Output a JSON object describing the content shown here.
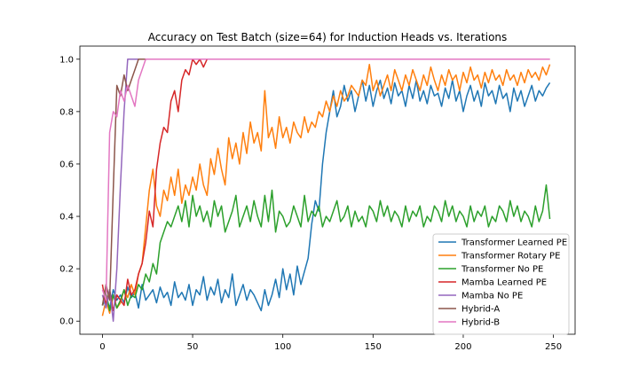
{
  "chart_data": {
    "type": "line",
    "title": "Accuracy on Test Batch (size=64) for Induction Heads vs. Iterations",
    "xlabel": "",
    "ylabel": "",
    "xlim": [
      -12.5,
      262
    ],
    "ylim": [
      -0.05,
      1.05
    ],
    "x_ticks": [
      0,
      50,
      100,
      150,
      200,
      250
    ],
    "x_tick_labels": [
      "0",
      "50",
      "100",
      "150",
      "200",
      "250"
    ],
    "y_ticks": [
      0.0,
      0.2,
      0.4,
      0.6,
      0.8,
      1.0
    ],
    "y_tick_labels": [
      "0.0",
      "0.2",
      "0.4",
      "0.6",
      "0.8",
      "1.0"
    ],
    "grid": false,
    "legend_position": "lower-right",
    "x_start": 0,
    "x_step": 2,
    "series": [
      {
        "name": "Transformer Learned PE",
        "color": "#1f77b4",
        "values": [
          0.06,
          0.09,
          0.05,
          0.12,
          0.08,
          0.1,
          0.07,
          0.13,
          0.09,
          0.11,
          0.05,
          0.14,
          0.08,
          0.1,
          0.12,
          0.07,
          0.13,
          0.09,
          0.11,
          0.06,
          0.15,
          0.09,
          0.11,
          0.08,
          0.14,
          0.06,
          0.12,
          0.1,
          0.17,
          0.08,
          0.13,
          0.1,
          0.16,
          0.07,
          0.12,
          0.09,
          0.18,
          0.06,
          0.1,
          0.14,
          0.08,
          0.12,
          0.1,
          0.07,
          0.04,
          0.12,
          0.06,
          0.1,
          0.16,
          0.09,
          0.2,
          0.12,
          0.18,
          0.1,
          0.21,
          0.14,
          0.19,
          0.24,
          0.37,
          0.46,
          0.42,
          0.6,
          0.72,
          0.8,
          0.88,
          0.78,
          0.82,
          0.9,
          0.84,
          0.88,
          0.8,
          0.86,
          0.92,
          0.84,
          0.9,
          0.82,
          0.88,
          0.92,
          0.85,
          0.89,
          0.83,
          0.91,
          0.86,
          0.88,
          0.82,
          0.9,
          0.85,
          0.92,
          0.84,
          0.88,
          0.83,
          0.9,
          0.86,
          0.87,
          0.82,
          0.89,
          0.85,
          0.92,
          0.84,
          0.88,
          0.8,
          0.86,
          0.9,
          0.84,
          0.88,
          0.82,
          0.91,
          0.86,
          0.88,
          0.83,
          0.9,
          0.85,
          0.87,
          0.8,
          0.89,
          0.84,
          0.88,
          0.82,
          0.86,
          0.9,
          0.84,
          0.88,
          0.86,
          0.89,
          0.91
        ]
      },
      {
        "name": "Transformer Rotary PE",
        "color": "#ff7f0e",
        "values": [
          0.02,
          0.08,
          0.03,
          0.1,
          0.05,
          0.07,
          0.12,
          0.09,
          0.14,
          0.1,
          0.18,
          0.22,
          0.36,
          0.5,
          0.58,
          0.44,
          0.4,
          0.5,
          0.46,
          0.55,
          0.48,
          0.58,
          0.45,
          0.52,
          0.48,
          0.55,
          0.5,
          0.6,
          0.52,
          0.48,
          0.62,
          0.56,
          0.66,
          0.58,
          0.52,
          0.7,
          0.62,
          0.68,
          0.6,
          0.72,
          0.64,
          0.76,
          0.68,
          0.72,
          0.65,
          0.88,
          0.7,
          0.74,
          0.66,
          0.78,
          0.7,
          0.74,
          0.68,
          0.76,
          0.72,
          0.7,
          0.78,
          0.72,
          0.76,
          0.74,
          0.8,
          0.78,
          0.84,
          0.8,
          0.86,
          0.82,
          0.88,
          0.84,
          0.86,
          0.9,
          0.88,
          0.86,
          0.92,
          0.9,
          0.98,
          0.88,
          0.92,
          0.86,
          0.9,
          0.94,
          0.88,
          0.96,
          0.92,
          0.88,
          0.94,
          0.9,
          0.96,
          0.92,
          0.88,
          0.94,
          0.9,
          0.97,
          0.92,
          0.88,
          0.94,
          0.9,
          0.96,
          0.92,
          0.94,
          0.88,
          0.95,
          0.91,
          0.97,
          0.92,
          0.94,
          0.89,
          0.95,
          0.91,
          0.96,
          0.92,
          0.94,
          0.9,
          0.96,
          0.92,
          0.94,
          0.9,
          0.95,
          0.91,
          0.96,
          0.93,
          0.95,
          0.92,
          0.97,
          0.94,
          0.98
        ]
      },
      {
        "name": "Transformer No PE",
        "color": "#2ca02c",
        "values": [
          0.06,
          0.11,
          0.04,
          0.1,
          0.05,
          0.08,
          0.12,
          0.06,
          0.1,
          0.09,
          0.14,
          0.12,
          0.18,
          0.15,
          0.22,
          0.18,
          0.3,
          0.34,
          0.38,
          0.36,
          0.4,
          0.44,
          0.38,
          0.46,
          0.36,
          0.48,
          0.4,
          0.44,
          0.38,
          0.42,
          0.36,
          0.46,
          0.4,
          0.44,
          0.34,
          0.38,
          0.42,
          0.48,
          0.36,
          0.4,
          0.44,
          0.38,
          0.46,
          0.4,
          0.36,
          0.48,
          0.38,
          0.5,
          0.34,
          0.42,
          0.4,
          0.36,
          0.38,
          0.44,
          0.4,
          0.36,
          0.48,
          0.38,
          0.42,
          0.4,
          0.44,
          0.36,
          0.4,
          0.38,
          0.42,
          0.46,
          0.38,
          0.4,
          0.44,
          0.36,
          0.42,
          0.38,
          0.4,
          0.36,
          0.44,
          0.42,
          0.38,
          0.46,
          0.4,
          0.44,
          0.38,
          0.42,
          0.4,
          0.36,
          0.44,
          0.38,
          0.42,
          0.4,
          0.44,
          0.36,
          0.4,
          0.38,
          0.44,
          0.42,
          0.38,
          0.46,
          0.4,
          0.44,
          0.38,
          0.42,
          0.4,
          0.36,
          0.44,
          0.38,
          0.42,
          0.4,
          0.44,
          0.36,
          0.4,
          0.38,
          0.44,
          0.42,
          0.38,
          0.46,
          0.4,
          0.44,
          0.38,
          0.42,
          0.4,
          0.36,
          0.44,
          0.38,
          0.42,
          0.52,
          0.39
        ]
      },
      {
        "name": "Mamba Learned PE",
        "color": "#d62728",
        "values": [
          0.14,
          0.06,
          0.12,
          0.04,
          0.1,
          0.08,
          0.06,
          0.16,
          0.1,
          0.12,
          0.18,
          0.22,
          0.3,
          0.42,
          0.36,
          0.58,
          0.68,
          0.74,
          0.72,
          0.84,
          0.88,
          0.8,
          0.92,
          0.96,
          0.94,
          1.0,
          0.98,
          1.0,
          0.97,
          1.0,
          1.0,
          1.0,
          1.0,
          1.0,
          1.0,
          1.0,
          1.0,
          1.0,
          1.0,
          1.0,
          1.0,
          1.0,
          1.0,
          1.0,
          1.0,
          1.0,
          1.0,
          1.0,
          1.0,
          1.0,
          1.0,
          1.0,
          1.0,
          1.0,
          1.0,
          1.0,
          1.0,
          1.0,
          1.0,
          1.0,
          1.0,
          1.0,
          1.0,
          1.0,
          1.0,
          1.0,
          1.0,
          1.0,
          1.0,
          1.0,
          1.0,
          1.0,
          1.0,
          1.0,
          1.0,
          1.0,
          1.0,
          1.0,
          1.0,
          1.0,
          1.0,
          1.0,
          1.0,
          1.0,
          1.0,
          1.0,
          1.0,
          1.0,
          1.0,
          1.0,
          1.0,
          1.0,
          1.0,
          1.0,
          1.0,
          1.0,
          1.0,
          1.0,
          1.0,
          1.0,
          1.0,
          1.0,
          1.0,
          1.0,
          1.0,
          1.0,
          1.0,
          1.0,
          1.0,
          1.0,
          1.0,
          1.0,
          1.0,
          1.0,
          1.0,
          1.0,
          1.0,
          1.0,
          1.0,
          1.0,
          1.0,
          1.0,
          1.0,
          1.0,
          1.0
        ]
      },
      {
        "name": "Mamba No PE",
        "color": "#9467bd",
        "values": [
          0.1,
          0.05,
          0.12,
          0.0,
          0.2,
          0.52,
          0.8,
          1.0,
          1.0,
          1.0,
          1.0,
          1.0,
          1.0,
          1.0,
          1.0,
          1.0,
          1.0,
          1.0,
          1.0,
          1.0,
          1.0,
          1.0,
          1.0,
          1.0,
          1.0,
          1.0,
          1.0,
          1.0,
          1.0,
          1.0,
          1.0,
          1.0,
          1.0,
          1.0,
          1.0,
          1.0,
          1.0,
          1.0,
          1.0,
          1.0,
          1.0,
          1.0,
          1.0,
          1.0,
          1.0,
          1.0,
          1.0,
          1.0,
          1.0,
          1.0,
          1.0,
          1.0,
          1.0,
          1.0,
          1.0,
          1.0,
          1.0,
          1.0,
          1.0,
          1.0,
          1.0,
          1.0,
          1.0,
          1.0,
          1.0,
          1.0,
          1.0,
          1.0,
          1.0,
          1.0,
          1.0,
          1.0,
          1.0,
          1.0,
          1.0,
          1.0,
          1.0,
          1.0,
          1.0,
          1.0,
          1.0,
          1.0,
          1.0,
          1.0,
          1.0,
          1.0,
          1.0,
          1.0,
          1.0,
          1.0,
          1.0,
          1.0,
          1.0,
          1.0,
          1.0,
          1.0,
          1.0,
          1.0,
          1.0,
          1.0,
          1.0,
          1.0,
          1.0,
          1.0,
          1.0,
          1.0,
          1.0,
          1.0,
          1.0,
          1.0,
          1.0,
          1.0,
          1.0,
          1.0,
          1.0,
          1.0,
          1.0,
          1.0,
          1.0,
          1.0,
          1.0,
          1.0,
          1.0,
          1.0,
          1.0
        ]
      },
      {
        "name": "Hybrid-A",
        "color": "#8c564b",
        "values": [
          0.06,
          0.14,
          0.08,
          0.5,
          0.9,
          0.86,
          0.94,
          0.88,
          0.92,
          0.96,
          1.0,
          1.0,
          1.0,
          1.0,
          1.0,
          1.0,
          1.0,
          1.0,
          1.0,
          1.0,
          1.0,
          1.0,
          1.0,
          1.0,
          1.0,
          1.0,
          1.0,
          1.0,
          1.0,
          1.0,
          1.0,
          1.0,
          1.0,
          1.0,
          1.0,
          1.0,
          1.0,
          1.0,
          1.0,
          1.0,
          1.0,
          1.0,
          1.0,
          1.0,
          1.0,
          1.0,
          1.0,
          1.0,
          1.0,
          1.0,
          1.0,
          1.0,
          1.0,
          1.0,
          1.0,
          1.0,
          1.0,
          1.0,
          1.0,
          1.0,
          1.0,
          1.0,
          1.0,
          1.0,
          1.0,
          1.0,
          1.0,
          1.0,
          1.0,
          1.0,
          1.0,
          1.0,
          1.0,
          1.0,
          1.0,
          1.0,
          1.0,
          1.0,
          1.0,
          1.0,
          1.0,
          1.0,
          1.0,
          1.0,
          1.0,
          1.0,
          1.0,
          1.0,
          1.0,
          1.0,
          1.0,
          1.0,
          1.0,
          1.0,
          1.0,
          1.0,
          1.0,
          1.0,
          1.0,
          1.0,
          1.0,
          1.0,
          1.0,
          1.0,
          1.0,
          1.0,
          1.0,
          1.0,
          1.0,
          1.0,
          1.0,
          1.0,
          1.0,
          1.0,
          1.0,
          1.0,
          1.0,
          1.0,
          1.0,
          1.0,
          1.0,
          1.0,
          1.0,
          1.0,
          1.0
        ]
      },
      {
        "name": "Hybrid-B",
        "color": "#e377c2",
        "values": [
          0.12,
          0.08,
          0.72,
          0.8,
          0.78,
          0.88,
          0.84,
          0.9,
          0.86,
          0.82,
          0.92,
          0.96,
          1.0,
          1.0,
          1.0,
          1.0,
          1.0,
          1.0,
          1.0,
          1.0,
          1.0,
          1.0,
          1.0,
          1.0,
          1.0,
          1.0,
          1.0,
          1.0,
          1.0,
          1.0,
          1.0,
          1.0,
          1.0,
          1.0,
          1.0,
          1.0,
          1.0,
          1.0,
          1.0,
          1.0,
          1.0,
          1.0,
          1.0,
          1.0,
          1.0,
          1.0,
          1.0,
          1.0,
          1.0,
          1.0,
          1.0,
          1.0,
          1.0,
          1.0,
          1.0,
          1.0,
          1.0,
          1.0,
          1.0,
          1.0,
          1.0,
          1.0,
          1.0,
          1.0,
          1.0,
          1.0,
          1.0,
          1.0,
          1.0,
          1.0,
          1.0,
          1.0,
          1.0,
          1.0,
          1.0,
          1.0,
          1.0,
          1.0,
          1.0,
          1.0,
          1.0,
          1.0,
          1.0,
          1.0,
          1.0,
          1.0,
          1.0,
          1.0,
          1.0,
          1.0,
          1.0,
          1.0,
          1.0,
          1.0,
          1.0,
          1.0,
          1.0,
          1.0,
          1.0,
          1.0,
          1.0,
          1.0,
          1.0,
          1.0,
          1.0,
          1.0,
          1.0,
          1.0,
          1.0,
          1.0,
          1.0,
          1.0,
          1.0,
          1.0,
          1.0,
          1.0,
          1.0,
          1.0,
          1.0,
          1.0,
          1.0,
          1.0,
          1.0,
          1.0,
          1.0
        ]
      }
    ]
  }
}
